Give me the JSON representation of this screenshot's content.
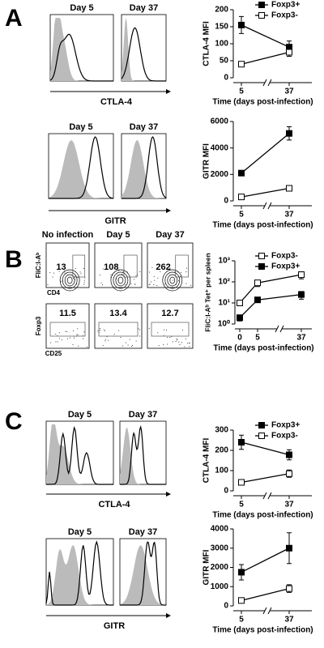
{
  "panel_A": {
    "letter": "A",
    "row1": {
      "days": [
        "Day 5",
        "Day 37"
      ],
      "marker": "CTLA-4"
    },
    "row2": {
      "days": [
        "Day 5",
        "Day 37"
      ],
      "marker": "GITR"
    }
  },
  "panel_B": {
    "letter": "B",
    "columns": [
      "No infection",
      "Day 5",
      "Day 37"
    ],
    "tet": {
      "y_label": "FliC:I-Aᵇ",
      "x_label": "CD4",
      "gate_values": [
        13,
        108,
        262
      ]
    },
    "treg": {
      "y_label": "Foxp3",
      "x_label": "CD25",
      "gate_values": [
        11.5,
        13.4,
        12.7
      ]
    }
  },
  "panel_C": {
    "letter": "C",
    "row1": {
      "days": [
        "Day 5",
        "Day 37"
      ],
      "marker": "CTLA-4"
    },
    "row2": {
      "days": [
        "Day 5",
        "Day 37"
      ],
      "marker": "GITR"
    }
  },
  "chart_data": [
    {
      "type": "line",
      "y_label": "CTLA-4 MFI",
      "x_label": "Time (days post-infection)",
      "categories": [
        "5",
        "37"
      ],
      "ylim": [
        0,
        200
      ],
      "yticks": [
        0,
        50,
        100,
        150,
        200
      ],
      "legend": "upper right",
      "series": [
        {
          "name": "Foxp3+",
          "color": "#000000",
          "marker_face": "#000000",
          "values": [
            155,
            90
          ],
          "errors": [
            25,
            18
          ]
        },
        {
          "name": "Foxp3-",
          "color": "#000000",
          "marker_face": "#ffffff",
          "values": [
            40,
            75
          ],
          "errors": [
            3,
            12
          ]
        }
      ]
    },
    {
      "type": "line",
      "y_label": "GITR MFI",
      "x_label": "Time (days post-infection)",
      "categories": [
        "5",
        "37"
      ],
      "ylim": [
        0,
        6000
      ],
      "yticks": [
        0,
        2000,
        4000,
        6000
      ],
      "series": [
        {
          "color": "#000000",
          "marker_face": "#000000",
          "values": [
            2100,
            5100
          ],
          "errors": [
            100,
            500
          ]
        },
        {
          "color": "#000000",
          "marker_face": "#ffffff",
          "values": [
            300,
            950
          ],
          "errors": [
            80,
            100
          ]
        }
      ]
    },
    {
      "type": "line",
      "y_label": "FliC:I-Aᵇ Tet⁺ per spleen",
      "x_label": "Time (days post-infection)",
      "categories": [
        "0",
        "5",
        "37"
      ],
      "log_scale": true,
      "ylim": [
        1,
        1000
      ],
      "yticks": [
        {
          "value": 1,
          "label": "10⁰"
        },
        {
          "value": 10,
          "label": "10¹"
        },
        {
          "value": 100,
          "label": "10²"
        },
        {
          "value": 1000,
          "label": "10³"
        }
      ],
      "legend": "upper right",
      "series": [
        {
          "name": "Foxp3-",
          "color": "#000000",
          "marker_face": "#ffffff",
          "values": [
            10,
            90,
            220
          ],
          "errors": [
            2,
            30,
            80
          ]
        },
        {
          "name": "Foxp3+",
          "color": "#000000",
          "marker_face": "#000000",
          "values": [
            2,
            14,
            25
          ],
          "errors": [
            0.6,
            3,
            10
          ]
        }
      ]
    },
    {
      "type": "line",
      "y_label": "CTLA-4 MFI",
      "x_label": "Time (days post-infection)",
      "categories": [
        "5",
        "37"
      ],
      "ylim": [
        0,
        300
      ],
      "yticks": [
        0,
        100,
        200,
        300
      ],
      "legend": "upper right",
      "series": [
        {
          "name": "Foxp3+",
          "color": "#000000",
          "marker_face": "#000000",
          "values": [
            240,
            178
          ],
          "errors": [
            35,
            25
          ]
        },
        {
          "name": "Foxp3-",
          "color": "#000000",
          "marker_face": "#ffffff",
          "values": [
            42,
            85
          ],
          "errors": [
            5,
            18
          ]
        }
      ]
    },
    {
      "type": "line",
      "y_label": "GITR MFI",
      "x_label": "Time (days post-infection)",
      "categories": [
        "5",
        "37"
      ],
      "ylim": [
        0,
        4000
      ],
      "yticks": [
        0,
        1000,
        2000,
        3000,
        4000
      ],
      "series": [
        {
          "color": "#000000",
          "marker_face": "#000000",
          "values": [
            1750,
            3000
          ],
          "errors": [
            400,
            800
          ]
        },
        {
          "color": "#000000",
          "marker_face": "#ffffff",
          "values": [
            280,
            900
          ],
          "errors": [
            50,
            200
          ]
        }
      ]
    }
  ]
}
